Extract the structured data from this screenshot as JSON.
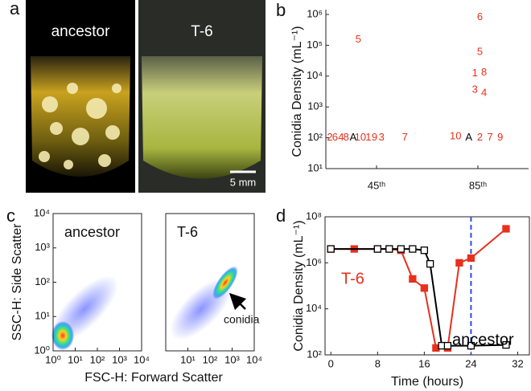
{
  "panel_a": {
    "label": "a",
    "photos": [
      {
        "title": "ancestor"
      },
      {
        "title": "T-6",
        "scale_bar": "5 mm"
      }
    ]
  },
  "chart_data": [
    {
      "type": "text-scatter",
      "label": "b",
      "ylabel": "Conidia Density (mL⁻¹)",
      "ylog": true,
      "ylim": [
        10,
        1000000
      ],
      "yticks": [
        {
          "value": 10,
          "label": "10¹"
        },
        {
          "value": 100,
          "label": "10²"
        },
        {
          "value": 1000,
          "label": "10³"
        },
        {
          "value": 10000,
          "label": "10⁴"
        },
        {
          "value": 100000,
          "label": "10⁵"
        },
        {
          "value": 1000000,
          "label": "10⁶"
        }
      ],
      "xlim": [
        0.5,
        2.5
      ],
      "xticks": [
        {
          "value": 1,
          "label": "45ᵗʰ"
        },
        {
          "value": 2,
          "label": "85ᵗʰ"
        }
      ],
      "series": [
        {
          "color": "#e8301c",
          "x": [
            0.54,
            0.59,
            0.65,
            0.7,
            0.84,
            0.92,
            0.98,
            1.05,
            1.28,
            0.82,
            1.78,
            2.02,
            2.12,
            2.22,
            2.02,
            2.02,
            1.97,
            2.06,
            1.97,
            2.06
          ],
          "values": [
            100,
            100,
            100,
            100,
            100,
            100,
            100,
            100,
            100,
            150000,
            110,
            100,
            100,
            100,
            800000,
            60000,
            12000,
            13000,
            3500,
            2800
          ],
          "labels": [
            "2",
            "6",
            "4",
            "8",
            "10",
            "1",
            "9",
            "3",
            "7",
            "5",
            "10",
            "2",
            "7",
            "9",
            "6",
            "5",
            "1",
            "8",
            "3",
            "4"
          ]
        },
        {
          "color": "#000000",
          "x": [
            0.77,
            1.91
          ],
          "values": [
            100,
            100
          ],
          "labels": [
            "A",
            "A"
          ]
        }
      ]
    },
    {
      "type": "density",
      "label": "c",
      "title": "ancestor",
      "ylabel": "SSC-H: Side Scatter",
      "xlabel": "FSC-H: Forward Scatter",
      "xlog": true,
      "ylog": true,
      "xlim": [
        1,
        10000
      ],
      "ylim": [
        1,
        10000
      ],
      "xticks": [
        {
          "value": 1,
          "label": "10⁰"
        },
        {
          "value": 10,
          "label": "10¹"
        },
        {
          "value": 100,
          "label": "10²"
        },
        {
          "value": 1000,
          "label": "10³"
        },
        {
          "value": 10000,
          "label": "10⁴"
        }
      ],
      "yticks": [
        {
          "value": 1,
          "label": "10⁰"
        },
        {
          "value": 10,
          "label": "10¹"
        },
        {
          "value": 100,
          "label": "10²"
        },
        {
          "value": 1000,
          "label": "10³"
        },
        {
          "value": 10000,
          "label": "10⁴"
        }
      ]
    },
    {
      "type": "density",
      "title": "T-6",
      "annotation": "conidia",
      "xlog": true,
      "ylog": true,
      "xlim": [
        1,
        10000
      ],
      "ylim": [
        1,
        10000
      ],
      "xticks": [
        {
          "value": 10,
          "label": "10¹"
        },
        {
          "value": 100,
          "label": "10²"
        },
        {
          "value": 1000,
          "label": "10³"
        },
        {
          "value": 10000,
          "label": "10⁴"
        }
      ]
    },
    {
      "type": "line",
      "label": "d",
      "ylabel": "Conidia  Density (mL⁻¹)",
      "xlabel": "Time (hours)",
      "ylog": true,
      "xlim": [
        -1,
        34
      ],
      "ylim": [
        100,
        100000000
      ],
      "xticks": [
        0,
        8,
        16,
        24,
        32
      ],
      "yticks": [
        {
          "value": 100,
          "label": "10²"
        },
        {
          "value": 10000,
          "label": "10⁴"
        },
        {
          "value": 1000000,
          "label": "10⁶"
        },
        {
          "value": 100000000,
          "label": "10⁸"
        }
      ],
      "vline": {
        "x": 24,
        "color": "#2a4fd8"
      },
      "series": [
        {
          "name": "T-6",
          "color": "#e8301c",
          "filled": true,
          "x": [
            0,
            4,
            8,
            10,
            12,
            14,
            16,
            18,
            20,
            22,
            24,
            30
          ],
          "values": [
            4000000,
            4000000,
            4000000,
            4000000,
            3500000,
            200000,
            80000,
            200,
            200,
            1000000,
            1600000,
            30000000
          ]
        },
        {
          "name": "ancestor",
          "color": "#000000",
          "filled": false,
          "x": [
            0,
            8,
            10,
            12,
            14,
            16,
            17,
            19,
            20,
            24,
            30
          ],
          "values": [
            4000000,
            4000000,
            4000000,
            4000000,
            4000000,
            3500000,
            900000,
            250,
            250,
            250,
            270
          ]
        }
      ]
    }
  ]
}
